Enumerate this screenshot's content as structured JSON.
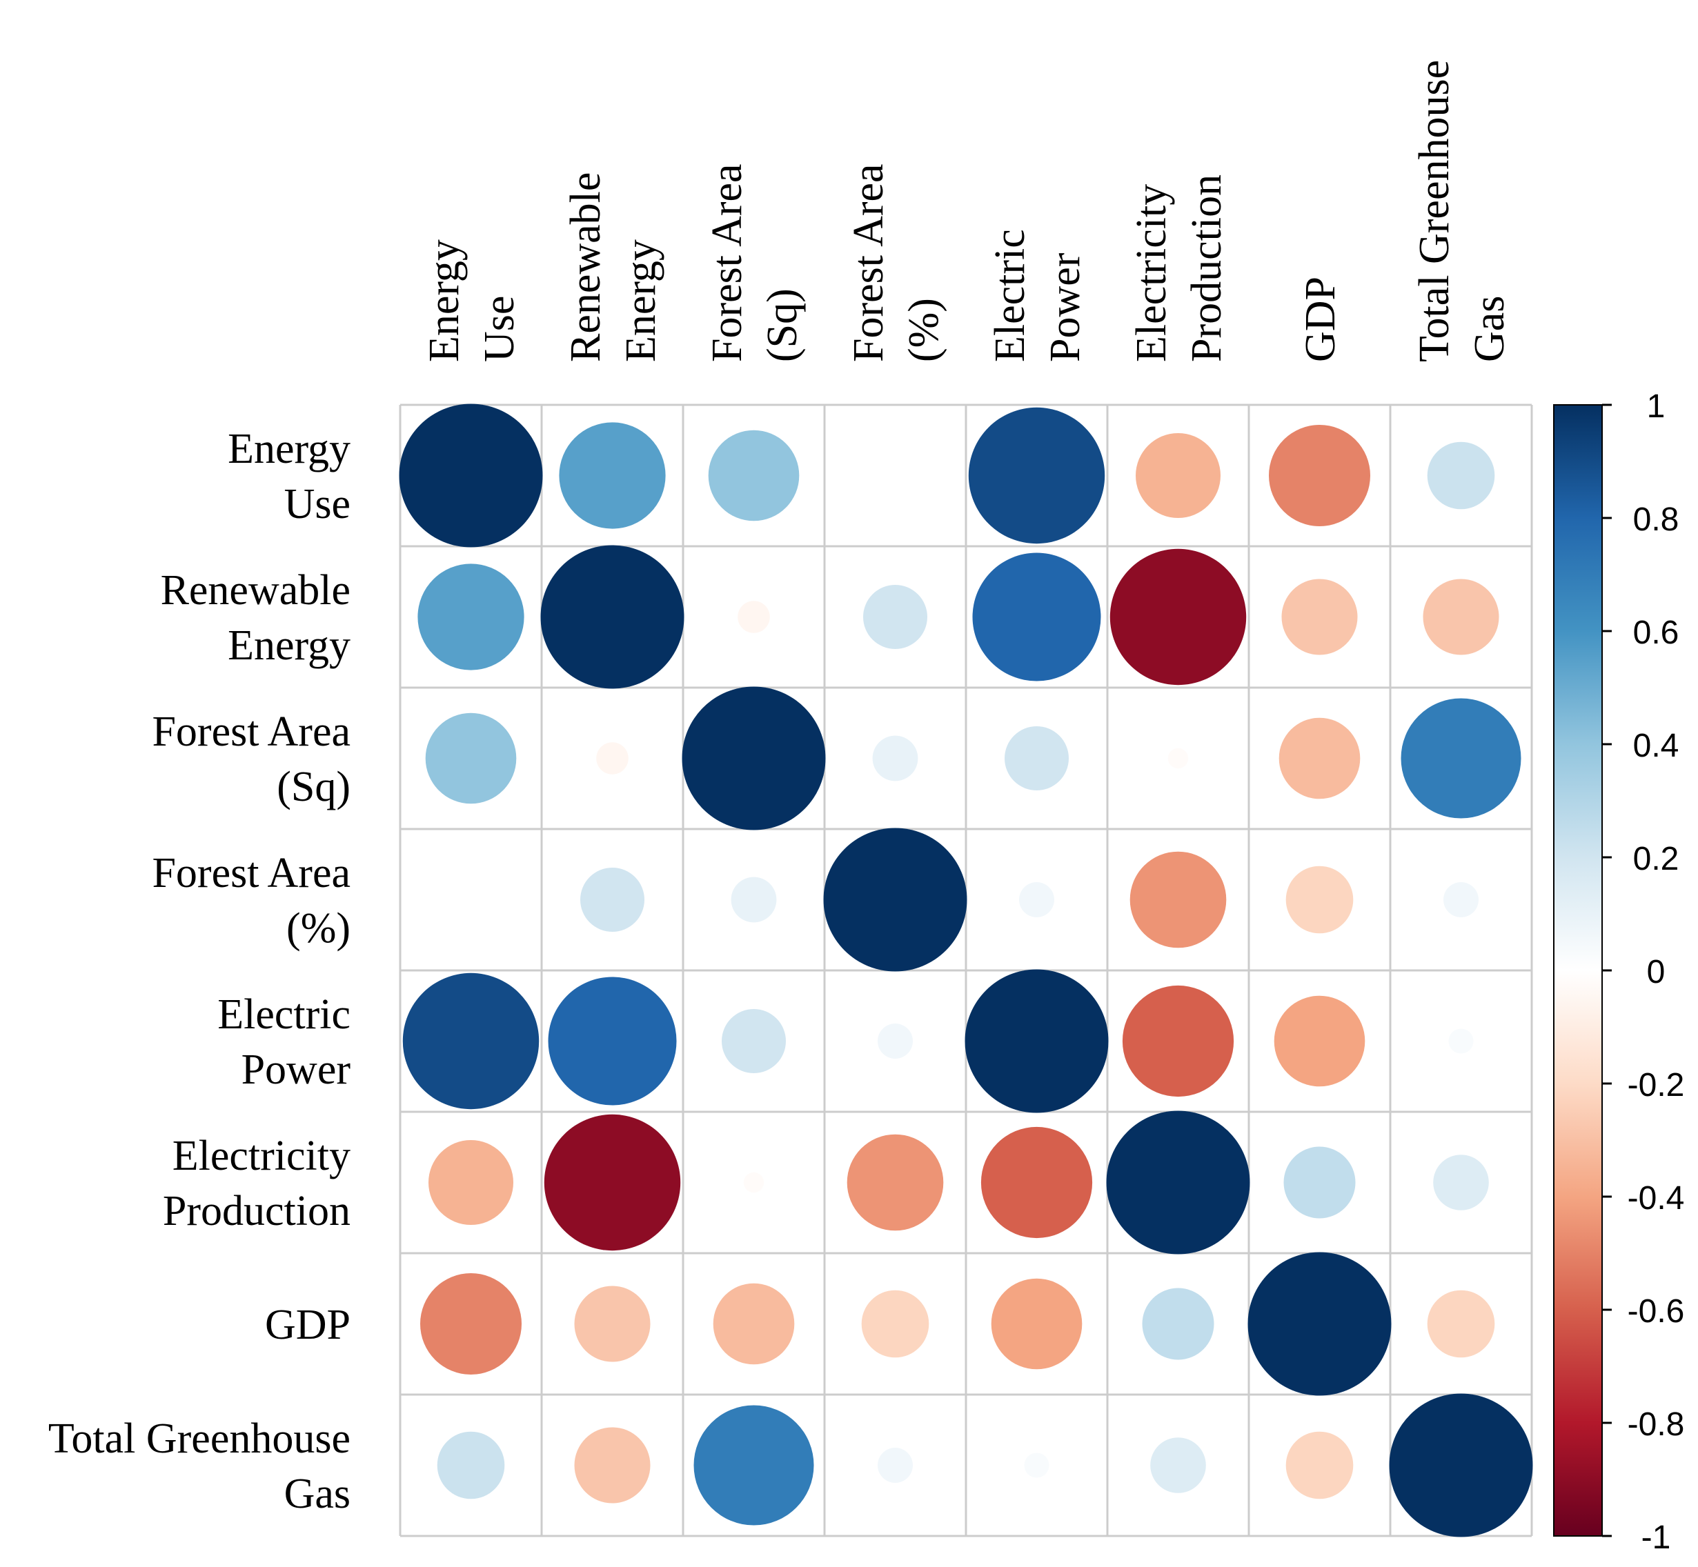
{
  "chart_data": {
    "type": "heatmap",
    "subtype": "correlation-circle-matrix",
    "title": "",
    "variables": [
      [
        "Energy",
        "Use"
      ],
      [
        "Renewable",
        "Energy"
      ],
      [
        "Forest Area",
        "(Sq)"
      ],
      [
        "Forest Area",
        "(%)"
      ],
      [
        "Electric",
        "Power"
      ],
      [
        "Electricity",
        "Production"
      ],
      [
        "GDP"
      ],
      [
        "Total Greenhouse",
        "Gas"
      ]
    ],
    "matrix": [
      [
        1.0,
        0.55,
        0.4,
        0.0,
        0.9,
        -0.35,
        -0.5,
        0.22
      ],
      [
        0.55,
        1.0,
        -0.05,
        0.2,
        0.8,
        -0.9,
        -0.28,
        -0.28
      ],
      [
        0.4,
        -0.05,
        1.0,
        0.1,
        0.2,
        -0.02,
        -0.32,
        0.7
      ],
      [
        0.0,
        0.2,
        0.1,
        1.0,
        0.06,
        -0.45,
        -0.22,
        0.06
      ],
      [
        0.9,
        0.8,
        0.2,
        0.06,
        1.0,
        -0.6,
        -0.4,
        0.03
      ],
      [
        -0.35,
        -0.9,
        -0.02,
        -0.45,
        -0.6,
        1.0,
        0.25,
        0.15
      ],
      [
        -0.5,
        -0.28,
        -0.32,
        -0.22,
        -0.4,
        0.25,
        1.0,
        -0.22
      ],
      [
        0.22,
        -0.28,
        0.7,
        0.06,
        0.03,
        0.15,
        -0.22,
        1.0
      ]
    ],
    "colorbar": {
      "range": [
        -1,
        1
      ],
      "ticks": [
        1,
        0.8,
        0.6,
        0.4,
        0.2,
        0,
        -0.2,
        -0.4,
        -0.6,
        -0.8,
        -1
      ],
      "tick_labels": [
        "1",
        "0.8",
        "0.6",
        "0.4",
        "0.2",
        "0",
        "-0.2",
        "-0.4",
        "-0.6",
        "-0.8",
        "-1"
      ]
    },
    "colors": {
      "low": "#67001f",
      "mid": "#ffffff",
      "high": "#053061"
    },
    "grid": true,
    "legend": "right"
  }
}
